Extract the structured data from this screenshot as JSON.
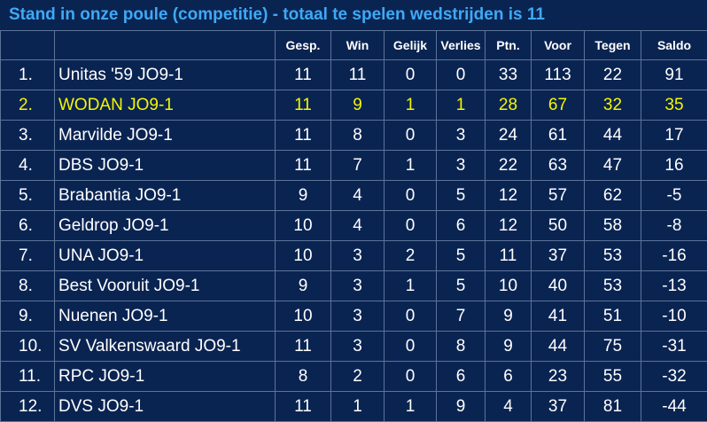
{
  "title": "Stand in onze poule (competitie) - totaal te spelen wedstrijden is 11",
  "colors": {
    "background": "#0a2452",
    "title": "#3fa9f5",
    "text": "#ffffff",
    "highlight": "#f6f600",
    "grid": "#5c7399"
  },
  "headers": [
    "",
    "",
    "Gesp.",
    "Win",
    "Gelijk",
    "Verlies",
    "Ptn.",
    "Voor",
    "Tegen",
    "Saldo"
  ],
  "rows": [
    {
      "pos": "1.",
      "team": "Unitas '59 JO9-1",
      "gesp": "11",
      "win": "11",
      "gelijk": "0",
      "verlies": "0",
      "ptn": "33",
      "voor": "113",
      "tegen": "22",
      "saldo": "91"
    },
    {
      "pos": "2.",
      "team": "WODAN JO9-1",
      "gesp": "11",
      "win": "9",
      "gelijk": "1",
      "verlies": "1",
      "ptn": "28",
      "voor": "67",
      "tegen": "32",
      "saldo": "35"
    },
    {
      "pos": "3.",
      "team": "Marvilde JO9-1",
      "gesp": "11",
      "win": "8",
      "gelijk": "0",
      "verlies": "3",
      "ptn": "24",
      "voor": "61",
      "tegen": "44",
      "saldo": "17"
    },
    {
      "pos": "4.",
      "team": "DBS JO9-1",
      "gesp": "11",
      "win": "7",
      "gelijk": "1",
      "verlies": "3",
      "ptn": "22",
      "voor": "63",
      "tegen": "47",
      "saldo": "16"
    },
    {
      "pos": "5.",
      "team": "Brabantia JO9-1",
      "gesp": "9",
      "win": "4",
      "gelijk": "0",
      "verlies": "5",
      "ptn": "12",
      "voor": "57",
      "tegen": "62",
      "saldo": "-5"
    },
    {
      "pos": "6.",
      "team": "Geldrop JO9-1",
      "gesp": "10",
      "win": "4",
      "gelijk": "0",
      "verlies": "6",
      "ptn": "12",
      "voor": "50",
      "tegen": "58",
      "saldo": "-8"
    },
    {
      "pos": "7.",
      "team": "UNA JO9-1",
      "gesp": "10",
      "win": "3",
      "gelijk": "2",
      "verlies": "5",
      "ptn": "11",
      "voor": "37",
      "tegen": "53",
      "saldo": "-16"
    },
    {
      "pos": "8.",
      "team": "Best Vooruit JO9-1",
      "gesp": "9",
      "win": "3",
      "gelijk": "1",
      "verlies": "5",
      "ptn": "10",
      "voor": "40",
      "tegen": "53",
      "saldo": "-13"
    },
    {
      "pos": "9.",
      "team": "Nuenen JO9-1",
      "gesp": "10",
      "win": "3",
      "gelijk": "0",
      "verlies": "7",
      "ptn": "9",
      "voor": "41",
      "tegen": "51",
      "saldo": "-10"
    },
    {
      "pos": "10.",
      "team": "SV Valkenswaard JO9-1",
      "gesp": "11",
      "win": "3",
      "gelijk": "0",
      "verlies": "8",
      "ptn": "9",
      "voor": "44",
      "tegen": "75",
      "saldo": "-31"
    },
    {
      "pos": "11.",
      "team": "RPC JO9-1",
      "gesp": "8",
      "win": "2",
      "gelijk": "0",
      "verlies": "6",
      "ptn": "6",
      "voor": "23",
      "tegen": "55",
      "saldo": "-32"
    },
    {
      "pos": "12.",
      "team": "DVS JO9-1",
      "gesp": "11",
      "win": "1",
      "gelijk": "1",
      "verlies": "9",
      "ptn": "4",
      "voor": "37",
      "tegen": "81",
      "saldo": "-44"
    }
  ],
  "highlight_row": 1
}
